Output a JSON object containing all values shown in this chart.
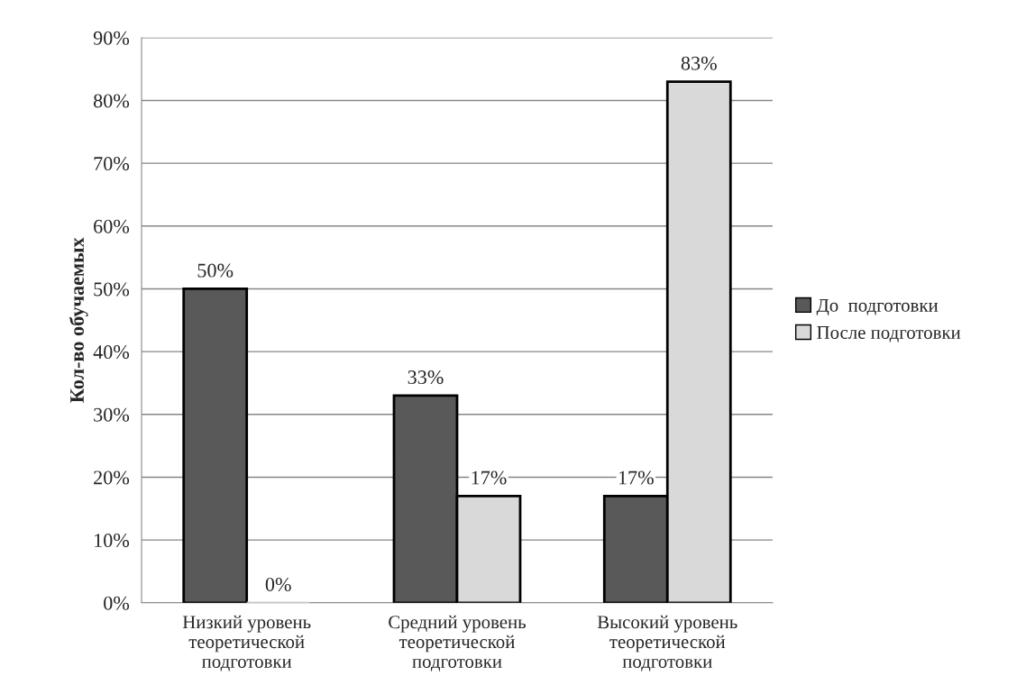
{
  "chart_data": {
    "type": "bar",
    "ylabel": "Кол-во обучаемых",
    "categories": [
      "Низкий уровень\nтеоретической\nподготовки",
      "Средний уровень\nтеоретической\nподготовки",
      "Высокий уровень\nтеоретической\nподготовки"
    ],
    "series": [
      {
        "name": "До  подготовки",
        "color": "#595959",
        "values": [
          50,
          33,
          17
        ],
        "value_labels": [
          "50%",
          "33%",
          "17%"
        ]
      },
      {
        "name": "После подготовки",
        "color": "#d9d9d9",
        "values": [
          0,
          17,
          83
        ],
        "value_labels": [
          "0%",
          "17%",
          "83%"
        ]
      }
    ],
    "ylim": [
      0,
      90
    ],
    "yticks": [
      {
        "value": 0,
        "label": "0%"
      },
      {
        "value": 10,
        "label": "10%"
      },
      {
        "value": 20,
        "label": "20%"
      },
      {
        "value": 30,
        "label": "30%"
      },
      {
        "value": 40,
        "label": "40%"
      },
      {
        "value": 50,
        "label": "50%"
      },
      {
        "value": 60,
        "label": "60%"
      },
      {
        "value": 70,
        "label": "70%"
      },
      {
        "value": 80,
        "label": "80%"
      },
      {
        "value": 90,
        "label": "90%"
      }
    ],
    "grid": "y",
    "legend": "right"
  }
}
